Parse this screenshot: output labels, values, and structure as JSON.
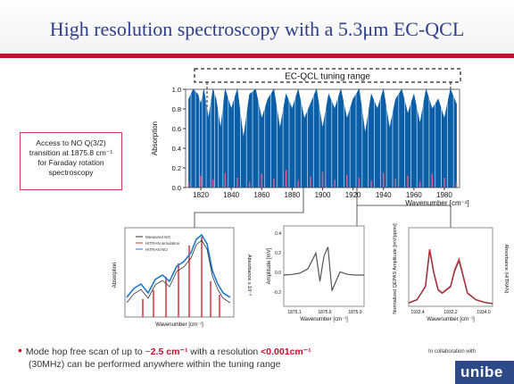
{
  "slide": {
    "title": "High resolution spectroscopy with a 5.3μm EC-QCL",
    "note_lines": [
      "Access to NO Q(3/2)",
      "transition at 1875.8 cm⁻¹",
      "for Faraday rotation",
      "spectroscopy"
    ],
    "bullet": {
      "part1": "Mode hop free scan of up to ~",
      "highlight1": "2.5 cm⁻¹",
      "part2": " with a resolution ",
      "highlight2": "<0.001cm⁻¹",
      "line2": "(30MHz) can be performed anywhere within the tuning range"
    },
    "collab": "In collaboration with",
    "logo_text": "unibe",
    "colors": {
      "title": "#2d3f8c",
      "accent": "#c8102e",
      "spectrum": "#0a5fa8"
    }
  },
  "chart_data": [
    {
      "type": "line",
      "title": "EC-QCL tuning range",
      "xlabel": "Wavenumber [cm⁻¹]",
      "ylabel": "Absorption",
      "xlim": [
        1810,
        1990
      ],
      "ylim": [
        0.0,
        1.0
      ],
      "x_ticks": [
        1820,
        1840,
        1860,
        1880,
        1900,
        1920,
        1940,
        1960,
        1980
      ],
      "x_tick_labels": [
        "1820",
        "1840",
        "1860",
        "1880",
        "1900",
        "1920",
        "1940",
        "1960",
        "1980"
      ],
      "y_ticks": [
        0.0,
        0.2,
        0.4,
        0.6,
        0.8,
        1.0
      ],
      "y_tick_labels": [
        "0.0",
        "0.2",
        "0.4",
        "0.6",
        "0.8",
        "1.0"
      ],
      "series": [
        {
          "color": "#0a5fa8",
          "x": [
            1812,
            1815,
            1818,
            1820,
            1822,
            1825,
            1828,
            1830,
            1833,
            1836,
            1840,
            1844,
            1848,
            1852,
            1856,
            1860,
            1864,
            1868,
            1872,
            1876,
            1880,
            1884,
            1888,
            1892,
            1896,
            1900,
            1904,
            1908,
            1912,
            1916,
            1920,
            1924,
            1928,
            1932,
            1936,
            1940,
            1944,
            1948,
            1952,
            1956,
            1960,
            1964,
            1968,
            1972,
            1976,
            1980,
            1984,
            1988
          ],
          "y": [
            0.9,
            1.0,
            0.95,
            0.85,
            1.0,
            0.7,
            1.0,
            0.9,
            0.6,
            1.0,
            0.8,
            1.0,
            0.5,
            0.95,
            1.0,
            0.7,
            0.9,
            1.0,
            0.6,
            0.95,
            0.8,
            1.0,
            0.7,
            0.85,
            1.0,
            0.6,
            0.95,
            0.8,
            1.0,
            0.7,
            0.9,
            1.0,
            0.55,
            0.95,
            0.8,
            1.0,
            0.6,
            0.9,
            1.0,
            0.75,
            0.95,
            0.65,
            1.0,
            0.8,
            0.9,
            0.7,
            1.0,
            0.85
          ]
        },
        {
          "color": "#e05a8a",
          "x": [
            1812,
            1820,
            1828,
            1836,
            1844,
            1852,
            1860,
            1868,
            1876,
            1884,
            1892,
            1900,
            1908,
            1916,
            1924,
            1932,
            1940,
            1948,
            1956,
            1964,
            1972,
            1980,
            1988
          ],
          "y": [
            0.05,
            0.12,
            0.08,
            0.15,
            0.1,
            0.06,
            0.14,
            0.09,
            0.18,
            0.07,
            0.11,
            0.16,
            0.08,
            0.13,
            0.1,
            0.07,
            0.15,
            0.09,
            0.12,
            0.06,
            0.14,
            0.1,
            0.05
          ]
        }
      ]
    },
    {
      "type": "line",
      "xlabel": "Wavenumber [cm⁻¹]",
      "ylabel": "Absorption",
      "y2label": "Absorbance x 10⁻³",
      "legend": [
        "Measured NO",
        "HITRAN simulation",
        "HITRAN NO"
      ]
    },
    {
      "type": "line",
      "xlabel": "Wavenumber [cm⁻¹]",
      "ylabel": "Amplitude [mV]",
      "x_tick_labels": [
        "1875.1",
        "1875.6",
        "1875.9"
      ],
      "y_tick_labels": [
        "0.4",
        "0.2",
        "0.0",
        "-0.2"
      ],
      "x": [
        0,
        0.1,
        0.2,
        0.3,
        0.4,
        0.45,
        0.5,
        0.55,
        0.6,
        0.7,
        0.8,
        0.9,
        1.0
      ],
      "y": [
        0.0,
        0.01,
        0.03,
        0.1,
        0.35,
        -0.1,
        0.3,
        0.45,
        -0.25,
        0.05,
        0.01,
        0.0,
        0.0
      ]
    },
    {
      "type": "line",
      "xlabel": "Wavenumber [cm⁻¹]",
      "ylabel": "Normalized QEPAS Amplitude [mV/ppmv]",
      "y2label": "Absorbance (HITRAN)",
      "x_tick_labels": [
        "1932.4",
        "1932.2",
        "1934.0"
      ],
      "x": [
        0,
        0.1,
        0.2,
        0.25,
        0.3,
        0.35,
        0.4,
        0.5,
        0.55,
        0.6,
        0.65,
        0.7,
        0.8,
        0.9,
        1.0
      ],
      "y": [
        0.05,
        0.1,
        0.3,
        0.85,
        0.5,
        0.25,
        0.2,
        0.3,
        0.55,
        0.7,
        0.45,
        0.2,
        0.1,
        0.06,
        0.04
      ]
    }
  ]
}
